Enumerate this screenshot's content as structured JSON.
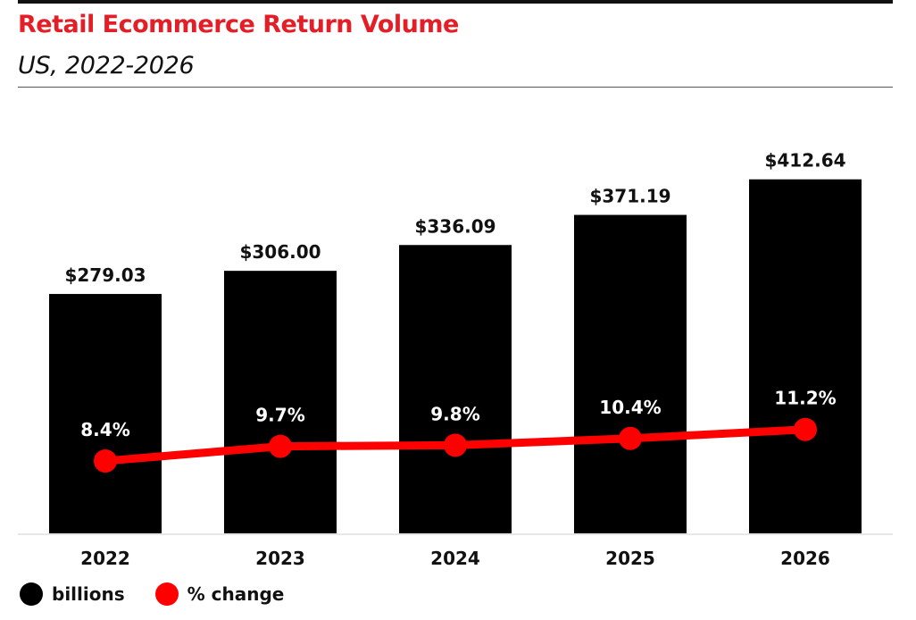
{
  "title": "Retail Ecommerce Return Volume",
  "subtitle": "US, 2022-2026",
  "colors": {
    "title": "#e41e26",
    "bars": "#000000",
    "line": "#ff0000",
    "bar_label": "#111111",
    "pct_label": "#ffffff"
  },
  "legend": [
    {
      "label": "billions",
      "color": "#000000",
      "icon": "circle"
    },
    {
      "label": "% change",
      "color": "#ff0000",
      "icon": "circle"
    }
  ],
  "chart_data": {
    "type": "bar",
    "categories": [
      "2022",
      "2023",
      "2024",
      "2025",
      "2026"
    ],
    "series": [
      {
        "name": "billions",
        "type": "bar",
        "values": [
          279.03,
          306.0,
          336.09,
          371.19,
          412.64
        ],
        "labels": [
          "$279.03",
          "$306.00",
          "$336.09",
          "$371.19",
          "$412.64"
        ]
      },
      {
        "name": "% change",
        "type": "line",
        "values": [
          8.4,
          9.7,
          9.8,
          10.4,
          11.2
        ],
        "labels": [
          "8.4%",
          "9.7%",
          "9.8%",
          "10.4%",
          "11.2%"
        ]
      }
    ],
    "grid": false,
    "legend_position": "bottom-left"
  }
}
